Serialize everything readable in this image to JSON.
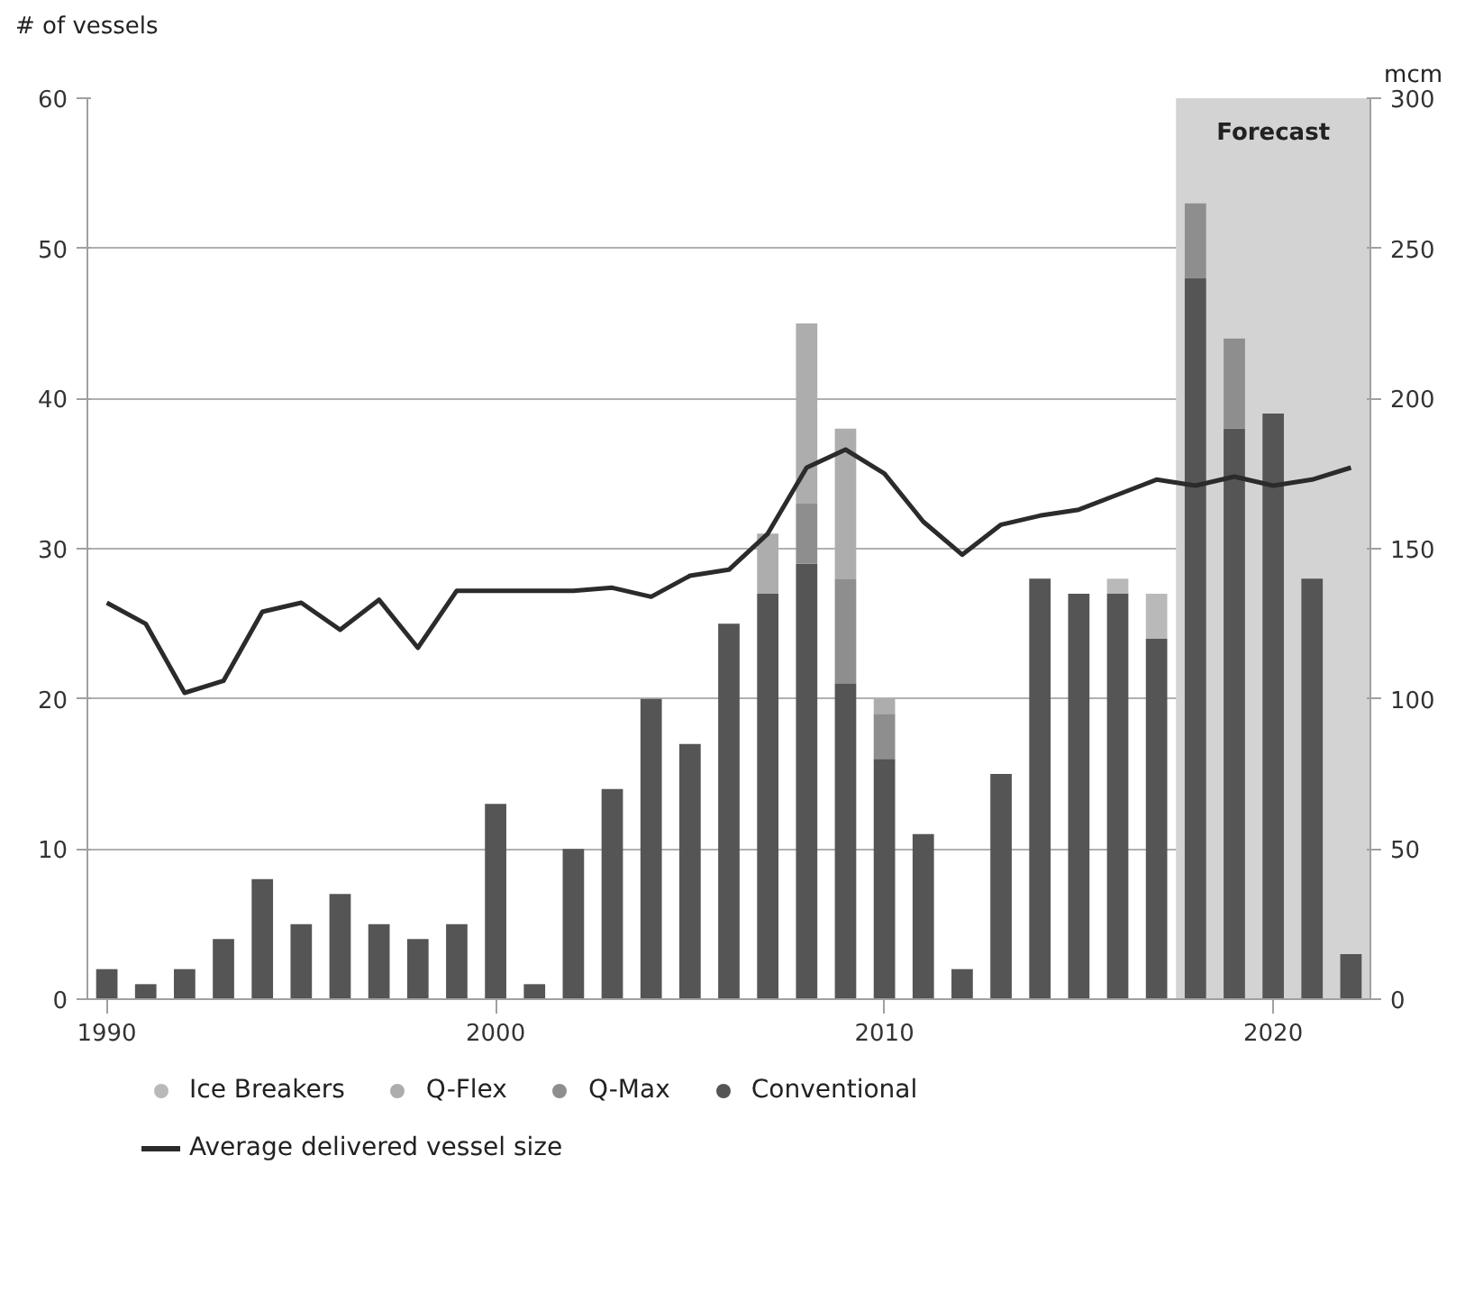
{
  "chart_data": {
    "type": "bar",
    "stacked": true,
    "ylabel": "# of vessels",
    "y2label": "mcm",
    "x": [
      1990,
      1991,
      1992,
      1993,
      1994,
      1995,
      1996,
      1997,
      1998,
      1999,
      2000,
      2001,
      2002,
      2003,
      2004,
      2005,
      2006,
      2007,
      2008,
      2009,
      2010,
      2011,
      2012,
      2013,
      2014,
      2015,
      2016,
      2017,
      2018,
      2019,
      2020,
      2021,
      2022
    ],
    "xlim": [
      1989.5,
      2022.5
    ],
    "xticks": [
      1990,
      2000,
      2010,
      2020
    ],
    "ylim": [
      0,
      60
    ],
    "yticks": [
      0,
      10,
      20,
      30,
      40,
      50,
      60
    ],
    "y2lim": [
      0,
      300
    ],
    "y2ticks": [
      0,
      50,
      100,
      150,
      200,
      250,
      300
    ],
    "grid": "y",
    "legend": "bottom",
    "series": [
      {
        "name": "Conventional",
        "color": "#555555",
        "values": [
          2,
          1,
          2,
          4,
          8,
          5,
          7,
          5,
          4,
          5,
          13,
          1,
          10,
          14,
          20,
          17,
          25,
          27,
          29,
          21,
          16,
          11,
          2,
          15,
          28,
          27,
          27,
          24,
          48,
          38,
          39,
          28,
          3
        ]
      },
      {
        "name": "Q-Max",
        "color": "#8e8e8e",
        "values": [
          0,
          0,
          0,
          0,
          0,
          0,
          0,
          0,
          0,
          0,
          0,
          0,
          0,
          0,
          0,
          0,
          0,
          0,
          4,
          7,
          3,
          0,
          0,
          0,
          0,
          0,
          0,
          0,
          5,
          6,
          0,
          0,
          0
        ]
      },
      {
        "name": "Q-Flex",
        "color": "#adadad",
        "values": [
          0,
          0,
          0,
          0,
          0,
          0,
          0,
          0,
          0,
          0,
          0,
          0,
          0,
          0,
          0,
          0,
          0,
          4,
          12,
          10,
          1,
          0,
          0,
          0,
          0,
          0,
          0,
          0,
          0,
          0,
          0,
          0,
          0
        ]
      },
      {
        "name": "Ice Breakers",
        "color": "#b9b9b9",
        "values": [
          0,
          0,
          0,
          0,
          0,
          0,
          0,
          0,
          0,
          0,
          0,
          0,
          0,
          0,
          0,
          0,
          0,
          0,
          0,
          0,
          0,
          0,
          0,
          0,
          0,
          0,
          1,
          3,
          0,
          0,
          0,
          0,
          0
        ]
      },
      {
        "name": "Average delivered vessel size",
        "type": "line",
        "axis": "y2",
        "color": "#2b2b2b",
        "line_style": "solid",
        "values": [
          132,
          125,
          102,
          106,
          129,
          132,
          123,
          133,
          117,
          136,
          136,
          136,
          136,
          137,
          134,
          141,
          143,
          155,
          177,
          183,
          175,
          159,
          148,
          158,
          161,
          163,
          168,
          173,
          171,
          174,
          171,
          173,
          177
        ]
      }
    ],
    "bands": [
      {
        "axis": "x",
        "from": 2017.5,
        "to": 2022.5,
        "label": "Forecast",
        "color": "#d3d3d3"
      }
    ]
  }
}
